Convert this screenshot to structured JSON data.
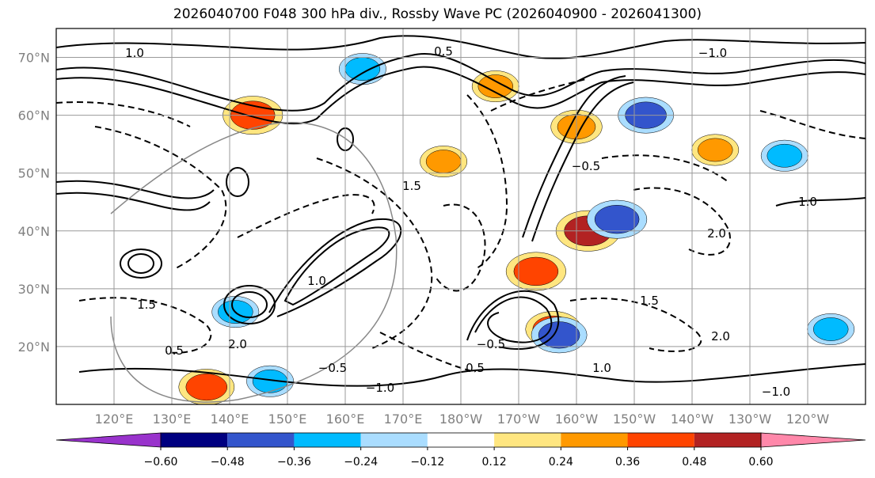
{
  "chart_data": {
    "type": "heatmap",
    "title": "2026040700 F048 300 hPa div., Rossby Wave PC (2026040900 - 2026041300)",
    "lat_ticks": [
      "20°N",
      "30°N",
      "40°N",
      "50°N",
      "60°N",
      "70°N"
    ],
    "lon_ticks": [
      "120°E",
      "130°E",
      "140°E",
      "150°E",
      "160°E",
      "170°E",
      "180°W",
      "170°W",
      "160°W",
      "150°W",
      "140°W",
      "130°W",
      "120°W"
    ],
    "lat_range": [
      10,
      75
    ],
    "lon_range": [
      110,
      250
    ],
    "grid": true,
    "colorbar": {
      "ticks": [
        "−0.60",
        "−0.48",
        "−0.36",
        "−0.24",
        "−0.12",
        "0.12",
        "0.24",
        "0.36",
        "0.48",
        "0.60"
      ],
      "colors": [
        "#9933cc",
        "#000080",
        "#3355cc",
        "#00bbff",
        "#aaddff",
        "#ffffff",
        "#ffe680",
        "#ff9900",
        "#ff4400",
        "#b22222",
        "#ff88aa"
      ],
      "extend": "both"
    },
    "contour_labels": [
      "1.0",
      "0.5",
      "−1.0",
      "−0.5",
      "1.5",
      "2.0"
    ],
    "divergence_features": [
      {
        "lon": 144,
        "lat": 60,
        "value": 0.45
      },
      {
        "lon": 202,
        "lat": 40,
        "value": 0.5
      },
      {
        "lon": 207,
        "lat": 42,
        "value": -0.45
      },
      {
        "lon": 212,
        "lat": 60,
        "value": -0.4
      },
      {
        "lon": 193,
        "lat": 33,
        "value": 0.45
      },
      {
        "lon": 196,
        "lat": 23,
        "value": 0.4
      },
      {
        "lon": 197,
        "lat": 22,
        "value": -0.4
      },
      {
        "lon": 136,
        "lat": 13,
        "value": 0.4
      },
      {
        "lon": 147,
        "lat": 14,
        "value": -0.3
      },
      {
        "lon": 224,
        "lat": 54,
        "value": 0.3
      },
      {
        "lon": 236,
        "lat": 53,
        "value": -0.3
      },
      {
        "lon": 244,
        "lat": 23,
        "value": -0.3
      },
      {
        "lon": 177,
        "lat": 52,
        "value": 0.3
      },
      {
        "lon": 200,
        "lat": 58,
        "value": 0.35
      },
      {
        "lon": 141,
        "lat": 26,
        "value": -0.3
      },
      {
        "lon": 163,
        "lat": 68,
        "value": -0.3
      },
      {
        "lon": 186,
        "lat": 65,
        "value": 0.3
      }
    ]
  }
}
